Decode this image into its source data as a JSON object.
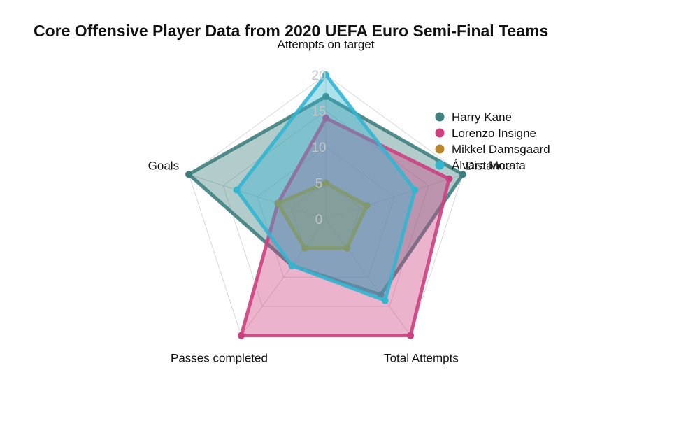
{
  "chart_data": {
    "type": "radar",
    "title": "Core Offensive Player Data from 2020 UEFA Euro Semi-Final Teams",
    "axes": [
      "Attempts on target",
      "Distance",
      "Total Attempts",
      "Passes completed",
      "Goals"
    ],
    "r_ticks": [
      "0",
      "5",
      "10",
      "15",
      "20"
    ],
    "r_range": [
      0,
      20
    ],
    "legend_position": "top-right",
    "series": [
      {
        "name": "Harry Kane",
        "color": "#3f807f",
        "values": [
          17,
          20,
          13,
          8,
          20
        ]
      },
      {
        "name": "Lorenzo Insigne",
        "color": "#cc4080",
        "values": [
          14,
          18,
          20,
          20,
          7
        ]
      },
      {
        "name": "Mikkel Damsgaard",
        "color": "#b8862b",
        "values": [
          5,
          6,
          5,
          5,
          7
        ]
      },
      {
        "name": "Álvaro Morata",
        "color": "#33b5d0",
        "values": [
          20,
          13,
          14,
          8,
          13
        ]
      }
    ]
  }
}
